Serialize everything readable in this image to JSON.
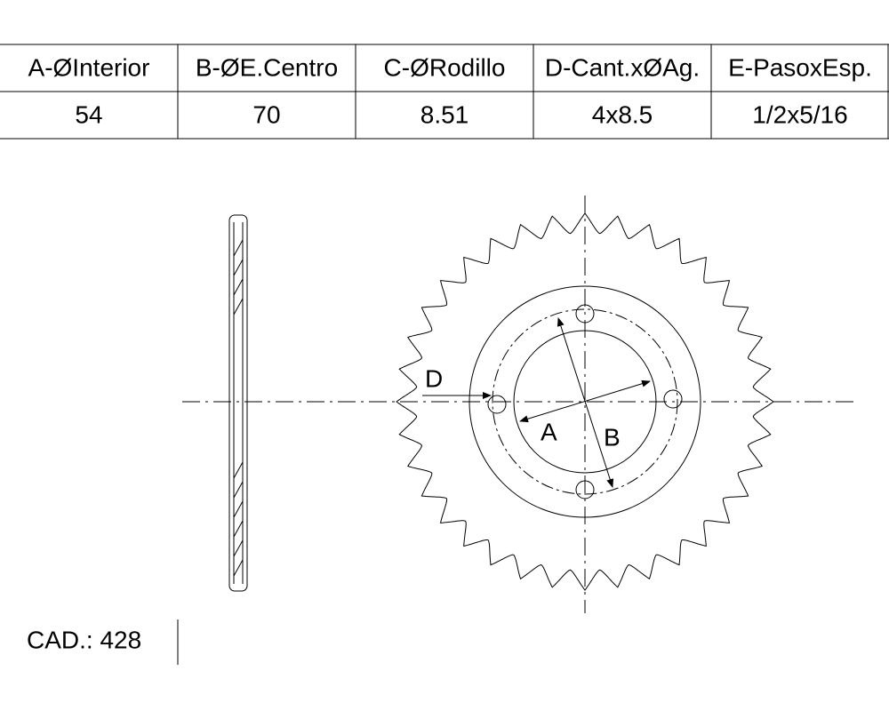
{
  "table": {
    "headers": [
      "A-ØInterior",
      "B-ØE.Centro",
      "C-ØRodillo",
      "D-Cant.xØAg.",
      "E-PasoxEsp."
    ],
    "values": [
      "54",
      "70",
      "8.51",
      "4x8.5",
      "1/2x5/16"
    ]
  },
  "drawing": {
    "labels": [
      "D",
      "A",
      "B"
    ]
  },
  "footer": {
    "cad": "CAD.: 428"
  }
}
